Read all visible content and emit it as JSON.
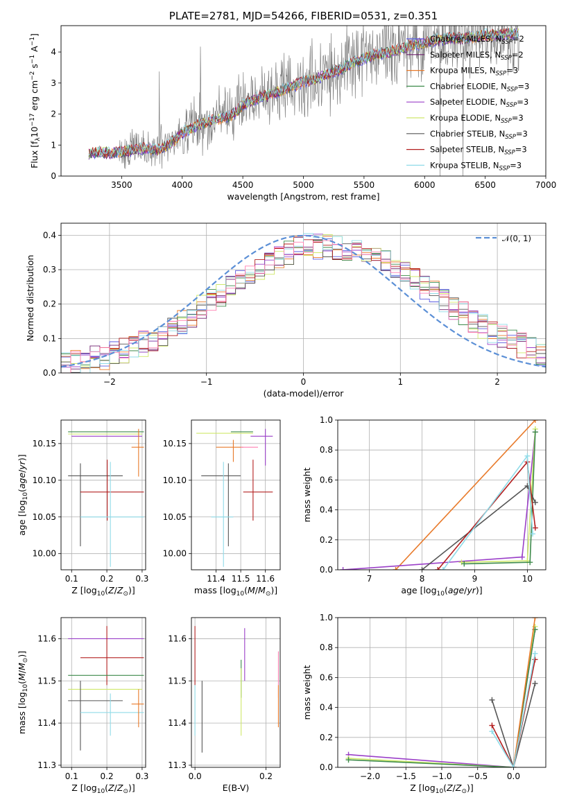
{
  "palette": {
    "chabrier_miles": "#5a5ae0",
    "salpeter_miles": "#6e1f6e",
    "kroupa_miles": "#e87a2a",
    "chabrier_elodie": "#3d8a4a",
    "salpeter_elodie": "#9a3fc8",
    "kroupa_elodie": "#cfe86a",
    "chabrier_stelib": "#555555",
    "salpeter_stelib": "#b31f1f",
    "kroupa_stelib": "#8fdbe8",
    "gaussian": "#5b8fd6",
    "pink": "#ff7fb0",
    "spectrum": "#808080",
    "grid": "#b0b0b0"
  },
  "chart_data": [
    {
      "id": "spectrum",
      "type": "line",
      "title": "PLATE=2781, MJD=54266, FIBERID=0531, z=0.351",
      "xlabel": "wavelength [Angstrom, rest frame]",
      "ylabel": "Flux [fλ10⁻¹⁷ erg cm⁻² s⁻¹ A⁻¹]",
      "xlim": [
        3000,
        7000
      ],
      "ylim": [
        0,
        4.85
      ],
      "xticks": [
        3500,
        4000,
        4500,
        5000,
        5500,
        6000,
        6500,
        7000
      ],
      "yticks": [
        0,
        1,
        2,
        3,
        4
      ],
      "grid": false,
      "legend_position": "upper-right",
      "legend": [
        {
          "main": "Chabrier MILES, N",
          "sub": "SSP",
          "tail": "=2",
          "color": "chabrier_miles"
        },
        {
          "main": "Salpeter MILES, N",
          "sub": "SSP",
          "tail": "=2",
          "color": "salpeter_miles"
        },
        {
          "main": "Kroupa MILES, N",
          "sub": "SSP",
          "tail": "=3",
          "color": "kroupa_miles"
        },
        {
          "main": "Chabrier ELODIE, N",
          "sub": "SSP",
          "tail": "=3",
          "color": "chabrier_elodie"
        },
        {
          "main": "Salpeter ELODIE, N",
          "sub": "SSP",
          "tail": "=3",
          "color": "salpeter_elodie"
        },
        {
          "main": "Kroupa ELODIE, N",
          "sub": "SSP",
          "tail": "=3",
          "color": "kroupa_elodie"
        },
        {
          "main": "Chabrier STELIB, N",
          "sub": "SSP",
          "tail": "=3",
          "color": "chabrier_stelib"
        },
        {
          "main": "Salpeter STELIB, N",
          "sub": "SSP",
          "tail": "=3",
          "color": "salpeter_stelib"
        },
        {
          "main": "Kroupa STELIB, N",
          "sub": "SSP",
          "tail": "=3",
          "color": "kroupa_stelib"
        }
      ],
      "model_series": [
        {
          "x": [
            3230,
            3300,
            3400,
            3500,
            3600,
            3700,
            3800,
            3900,
            4000,
            4100,
            4200,
            4300,
            4400,
            4500,
            4600,
            4700,
            4800,
            4900,
            5000,
            5100,
            5200,
            5300,
            5400,
            5500,
            5600,
            5700,
            5800,
            5900,
            6000,
            6100,
            6200,
            6300,
            6400,
            6500,
            6600,
            6700,
            6780
          ],
          "y": [
            0.7,
            0.8,
            0.75,
            0.8,
            0.85,
            0.9,
            0.85,
            1.05,
            1.4,
            1.6,
            1.75,
            1.85,
            1.95,
            2.3,
            2.5,
            2.6,
            2.75,
            2.9,
            3.05,
            3.15,
            3.3,
            3.45,
            3.65,
            3.8,
            3.95,
            4.0,
            4.1,
            4.25,
            4.3,
            4.4,
            4.45,
            4.45,
            4.5,
            4.55,
            4.55,
            4.6,
            4.6
          ]
        }
      ]
    },
    {
      "id": "residuals",
      "type": "line",
      "xlabel": "(data-model)/error",
      "ylabel": "Normed distribution",
      "xlim": [
        -2.5,
        2.5
      ],
      "ylim": [
        0,
        0.435
      ],
      "xticks": [
        -2,
        -1,
        0,
        1,
        2
      ],
      "yticks": [
        0.0,
        0.1,
        0.2,
        0.3,
        0.4
      ],
      "grid": true,
      "legend_position": "upper-right",
      "legend": [
        {
          "label": "𝒩(0, 1)",
          "color": "gaussian"
        }
      ],
      "gaussian": {
        "mean": 0,
        "sigma": 1
      },
      "bin_width": 0.1,
      "histogram_envelope": {
        "x": [
          -2.5,
          -2.0,
          -1.5,
          -1.0,
          -0.5,
          0.0,
          0.5,
          1.0,
          1.5,
          2.0,
          2.5
        ],
        "y": [
          0.02,
          0.05,
          0.1,
          0.2,
          0.3,
          0.37,
          0.36,
          0.3,
          0.2,
          0.11,
          0.05
        ]
      }
    },
    {
      "id": "age_vs_Z",
      "type": "scatter",
      "xlabel": "Z [log₁₀(Z/Z⊙)]",
      "ylabel": "age  [log₁₀(age/yr)]",
      "xlim": [
        0.07,
        0.31
      ],
      "ylim": [
        9.978,
        10.182
      ],
      "xticks": [
        0.1,
        0.2,
        0.3
      ],
      "yticks": [
        10.0,
        10.05,
        10.1,
        10.15
      ],
      "grid": true,
      "errorbars": [
        {
          "x": 0.201,
          "y": 10.166,
          "xlo": 0.09,
          "xhi": 0.305,
          "ylo": 10.166,
          "yhi": 10.166,
          "color": "chabrier_elodie"
        },
        {
          "x": 0.201,
          "y": 10.16,
          "xlo": 0.1,
          "xhi": 0.3,
          "ylo": 10.16,
          "yhi": 10.16,
          "color": "salpeter_elodie"
        },
        {
          "x": 0.17,
          "y": 10.163,
          "xlo": 0.09,
          "xhi": 0.3,
          "ylo": 10.163,
          "yhi": 10.163,
          "color": "kroupa_elodie"
        },
        {
          "x": 0.29,
          "y": 10.145,
          "xlo": 0.27,
          "xhi": 0.305,
          "ylo": 10.105,
          "yhi": 10.17,
          "color": "kroupa_miles"
        },
        {
          "x": 0.125,
          "y": 10.106,
          "xlo": 0.09,
          "xhi": 0.245,
          "ylo": 10.01,
          "yhi": 10.123,
          "color": "chabrier_stelib"
        },
        {
          "x": 0.201,
          "y": 10.084,
          "xlo": 0.125,
          "xhi": 0.305,
          "ylo": 10.045,
          "yhi": 10.128,
          "color": "salpeter_stelib"
        },
        {
          "x": 0.21,
          "y": 10.05,
          "xlo": 0.125,
          "xhi": 0.305,
          "ylo": 9.982,
          "yhi": 10.125,
          "color": "kroupa_stelib"
        }
      ]
    },
    {
      "id": "age_vs_mass",
      "type": "scatter",
      "xlabel": "mass [log₁₀(M/M⊙)]",
      "ylabel": "",
      "xlim": [
        11.3,
        11.66
      ],
      "ylim": [
        9.978,
        10.182
      ],
      "xticks": [
        11.4,
        11.5,
        11.6
      ],
      "yticks": [
        10.0,
        10.05,
        10.1,
        10.15
      ],
      "grid": true,
      "errorbars": [
        {
          "x": 11.49,
          "y": 10.166,
          "xlo": 11.46,
          "xhi": 11.55,
          "ylo": 10.166,
          "yhi": 10.166,
          "color": "chabrier_elodie"
        },
        {
          "x": 11.6,
          "y": 10.16,
          "xlo": 11.54,
          "xhi": 11.63,
          "ylo": 10.12,
          "yhi": 10.17,
          "color": "salpeter_elodie"
        },
        {
          "x": 11.45,
          "y": 10.164,
          "xlo": 11.32,
          "xhi": 11.55,
          "ylo": 10.164,
          "yhi": 10.164,
          "color": "kroupa_elodie"
        },
        {
          "x": 11.47,
          "y": 10.145,
          "xlo": 11.4,
          "xhi": 11.51,
          "ylo": 10.125,
          "yhi": 10.155,
          "color": "kroupa_miles"
        },
        {
          "x": 11.45,
          "y": 10.106,
          "xlo": 11.34,
          "xhi": 11.5,
          "ylo": 10.01,
          "yhi": 10.123,
          "color": "chabrier_stelib"
        },
        {
          "x": 11.55,
          "y": 10.084,
          "xlo": 11.51,
          "xhi": 11.63,
          "ylo": 10.045,
          "yhi": 10.128,
          "color": "salpeter_stelib"
        },
        {
          "x": 11.43,
          "y": 10.05,
          "xlo": 11.38,
          "xhi": 11.47,
          "ylo": 9.982,
          "yhi": 10.125,
          "color": "kroupa_stelib"
        },
        {
          "x": 11.53,
          "y": 10.145,
          "xlo": 11.5,
          "xhi": 11.57,
          "ylo": 10.145,
          "yhi": 10.145,
          "color": "pink"
        }
      ]
    },
    {
      "id": "weight_vs_age",
      "type": "line",
      "xlabel": "age  [log₁₀(age/yr)]",
      "ylabel": "mass weight",
      "xlim": [
        6.4,
        10.35
      ],
      "ylim": [
        0,
        1.0
      ],
      "xticks": [
        7,
        8,
        9,
        10
      ],
      "yticks": [
        0.0,
        0.2,
        0.4,
        0.6,
        0.8,
        1.0
      ],
      "grid": true,
      "series": [
        {
          "color": "kroupa_miles",
          "x": [
            7.5,
            10.15
          ],
          "y": [
            0.0,
            1.0
          ]
        },
        {
          "color": "salpeter_elodie",
          "x": [
            6.5,
            9.9,
            10.15
          ],
          "y": [
            0.0,
            0.085,
            0.92
          ]
        },
        {
          "color": "kroupa_elodie",
          "x": [
            8.75,
            10.0,
            10.15
          ],
          "y": [
            0.05,
            0.06,
            0.94
          ]
        },
        {
          "color": "chabrier_elodie",
          "x": [
            8.8,
            10.05,
            10.15
          ],
          "y": [
            0.04,
            0.05,
            0.92
          ]
        },
        {
          "color": "chabrier_stelib",
          "x": [
            8.0,
            10.0,
            10.15
          ],
          "y": [
            0.0,
            0.56,
            0.45
          ]
        },
        {
          "color": "salpeter_stelib",
          "x": [
            8.3,
            10.0,
            10.15
          ],
          "y": [
            0.0,
            0.72,
            0.28
          ]
        },
        {
          "color": "kroupa_stelib",
          "x": [
            8.4,
            10.0,
            10.1
          ],
          "y": [
            0.0,
            0.76,
            0.24
          ]
        }
      ]
    },
    {
      "id": "mass_vs_Z",
      "type": "scatter",
      "xlabel": "Z [log₁₀(Z/Z⊙)]",
      "ylabel": "mass [log₁₀(M/M⊙)]",
      "xlim": [
        0.07,
        0.31
      ],
      "ylim": [
        11.295,
        11.65
      ],
      "xticks": [
        0.1,
        0.2,
        0.3
      ],
      "yticks": [
        11.3,
        11.4,
        11.5,
        11.6
      ],
      "grid": true,
      "errorbars": [
        {
          "x": 0.2,
          "y": 11.6,
          "xlo": 0.09,
          "xhi": 0.305,
          "ylo": 11.6,
          "yhi": 11.6,
          "color": "salpeter_elodie"
        },
        {
          "x": 0.2,
          "y": 11.555,
          "xlo": 0.125,
          "xhi": 0.305,
          "ylo": 11.49,
          "yhi": 11.63,
          "color": "salpeter_stelib"
        },
        {
          "x": 0.2,
          "y": 11.513,
          "xlo": 0.09,
          "xhi": 0.305,
          "ylo": 11.513,
          "yhi": 11.513,
          "color": "chabrier_elodie"
        },
        {
          "x": 0.18,
          "y": 11.48,
          "xlo": 0.09,
          "xhi": 0.3,
          "ylo": 11.48,
          "yhi": 11.48,
          "color": "kroupa_elodie"
        },
        {
          "x": 0.125,
          "y": 11.453,
          "xlo": 0.09,
          "xhi": 0.245,
          "ylo": 11.335,
          "yhi": 11.5,
          "color": "chabrier_stelib"
        },
        {
          "x": 0.21,
          "y": 11.425,
          "xlo": 0.125,
          "xhi": 0.305,
          "ylo": 11.37,
          "yhi": 11.47,
          "color": "kroupa_stelib"
        },
        {
          "x": 0.29,
          "y": 11.445,
          "xlo": 0.27,
          "xhi": 0.305,
          "ylo": 11.39,
          "yhi": 11.48,
          "color": "kroupa_miles"
        }
      ]
    },
    {
      "id": "mass_vs_ebv",
      "type": "scatter",
      "xlabel": "E(B-V)",
      "ylabel": "",
      "xlim": [
        -0.01,
        0.24
      ],
      "ylim": [
        11.295,
        11.65
      ],
      "xticks": [
        0.0,
        0.2
      ],
      "yticks": [
        11.3,
        11.4,
        11.5,
        11.6
      ],
      "grid": true,
      "errorbars": [
        {
          "x": 0.0,
          "y": 11.56,
          "ylo": 11.49,
          "yhi": 11.63,
          "color": "salpeter_stelib"
        },
        {
          "x": 0.0,
          "y": 11.43,
          "ylo": 11.37,
          "yhi": 11.49,
          "color": "kroupa_stelib"
        },
        {
          "x": 0.02,
          "y": 11.4,
          "ylo": 11.33,
          "yhi": 11.5,
          "color": "chabrier_stelib"
        },
        {
          "x": 0.13,
          "y": 11.5,
          "ylo": 11.46,
          "yhi": 11.55,
          "color": "chabrier_elodie"
        },
        {
          "x": 0.13,
          "y": 11.44,
          "ylo": 11.37,
          "yhi": 11.53,
          "color": "kroupa_elodie"
        },
        {
          "x": 0.14,
          "y": 11.57,
          "ylo": 11.5,
          "yhi": 11.625,
          "color": "salpeter_elodie"
        },
        {
          "x": 0.235,
          "y": 11.52,
          "ylo": 11.46,
          "yhi": 11.57,
          "color": "pink"
        },
        {
          "x": 0.235,
          "y": 11.44,
          "ylo": 11.39,
          "yhi": 11.49,
          "color": "kroupa_miles"
        }
      ]
    },
    {
      "id": "weight_vs_Z",
      "type": "line",
      "xlabel": "Z [log₁₀(Z/Z⊙)]",
      "ylabel": "mass weight",
      "xlim": [
        -2.45,
        0.45
      ],
      "ylim": [
        0,
        1.0
      ],
      "xticks": [
        -2.0,
        -1.5,
        -1.0,
        -0.5,
        0.0
      ],
      "yticks": [
        0.0,
        0.2,
        0.4,
        0.6,
        0.8,
        1.0
      ],
      "grid": true,
      "series": [
        {
          "color": "salpeter_elodie",
          "x": [
            -2.3,
            0.0,
            0.3
          ],
          "y": [
            0.085,
            0.0,
            0.92
          ]
        },
        {
          "color": "kroupa_elodie",
          "x": [
            -2.3,
            0.0,
            0.3
          ],
          "y": [
            0.06,
            0.0,
            0.94
          ]
        },
        {
          "color": "chabrier_elodie",
          "x": [
            -2.3,
            0.0,
            0.3
          ],
          "y": [
            0.05,
            0.0,
            0.92
          ]
        },
        {
          "color": "kroupa_miles",
          "x": [
            0.0,
            0.3
          ],
          "y": [
            0.0,
            1.0
          ]
        },
        {
          "color": "chabrier_stelib",
          "x": [
            -0.3,
            0.0,
            0.3
          ],
          "y": [
            0.45,
            0.0,
            0.56
          ]
        },
        {
          "color": "salpeter_stelib",
          "x": [
            -0.3,
            0.0,
            0.3
          ],
          "y": [
            0.28,
            0.0,
            0.72
          ]
        },
        {
          "color": "kroupa_stelib",
          "x": [
            -0.3,
            0.0,
            0.3
          ],
          "y": [
            0.24,
            0.0,
            0.76
          ]
        }
      ]
    }
  ]
}
